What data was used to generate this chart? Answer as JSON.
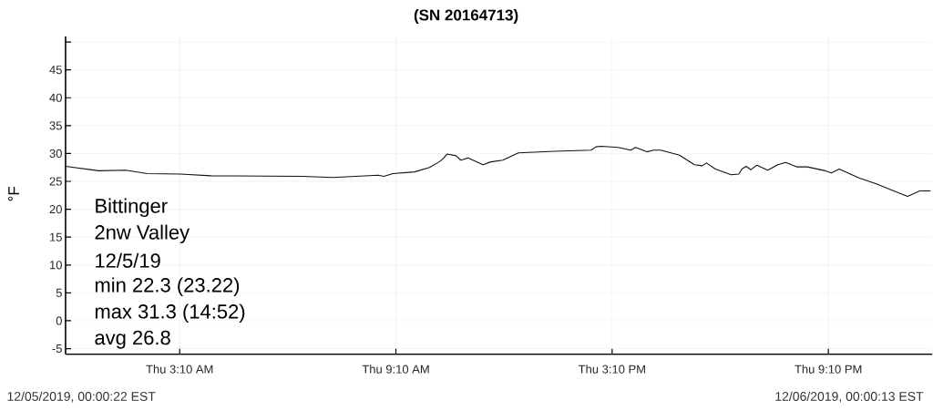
{
  "chart_data": {
    "type": "line",
    "title": "(SN 20164713)",
    "ylabel": "°F",
    "annotations": [
      "Bittinger",
      "2nw Valley",
      "12/5/19",
      "min 22.3  (23.22)",
      "max 31.3 (14:52)",
      "avg 26.8",
      "12/05/2019, 00:00:22 EST",
      "12/06/2019, 00:00:13 EST"
    ],
    "xlim": [
      "2019-12-05T00:00",
      "2019-12-06T00:03"
    ],
    "ylim": [
      -6,
      51
    ],
    "xticks": [
      {
        "value": "2019-12-05T03:10",
        "label": "Thu 3:10 AM"
      },
      {
        "value": "2019-12-05T09:10",
        "label": "Thu 9:10 AM"
      },
      {
        "value": "2019-12-05T15:10",
        "label": "Thu 3:10 PM"
      },
      {
        "value": "2019-12-05T21:10",
        "label": "Thu 9:10 PM"
      }
    ],
    "yticks": [
      -5,
      0,
      5,
      10,
      15,
      20,
      25,
      30,
      35,
      40,
      45,
      {
        "value": 50,
        "label": null
      }
    ],
    "grid": true,
    "color": "#111111",
    "marker": "none",
    "line_style": "solid",
    "x": [
      "2019-12-05T00:00",
      "2019-12-05T00:55",
      "2019-12-05T01:40",
      "2019-12-05T02:16",
      "2019-12-05T03:11",
      "2019-12-05T04:02",
      "2019-12-05T06:34",
      "2019-12-05T07:25",
      "2019-12-05T08:41",
      "2019-12-05T08:50",
      "2019-12-05T09:05",
      "2019-12-05T09:41",
      "2019-12-05T10:06",
      "2019-12-05T10:22",
      "2019-12-05T10:29",
      "2019-12-05T10:35",
      "2019-12-05T10:50",
      "2019-12-05T10:58",
      "2019-12-05T11:10",
      "2019-12-05T11:35",
      "2019-12-05T11:48",
      "2019-12-05T12:08",
      "2019-12-05T12:34",
      "2019-12-05T13:34",
      "2019-12-05T14:35",
      "2019-12-05T14:43",
      "2019-12-05T14:52",
      "2019-12-05T15:20",
      "2019-12-05T15:41",
      "2019-12-05T15:49",
      "2019-12-05T16:08",
      "2019-12-05T16:19",
      "2019-12-05T16:31",
      "2019-12-05T17:02",
      "2019-12-05T17:27",
      "2019-12-05T17:40",
      "2019-12-05T17:47",
      "2019-12-05T18:02",
      "2019-12-05T18:28",
      "2019-12-05T18:41",
      "2019-12-05T18:46",
      "2019-12-05T18:53",
      "2019-12-05T19:01",
      "2019-12-05T19:11",
      "2019-12-05T19:29",
      "2019-12-05T19:46",
      "2019-12-05T19:59",
      "2019-12-05T20:17",
      "2019-12-05T20:35",
      "2019-12-05T21:05",
      "2019-12-05T21:15",
      "2019-12-05T21:28",
      "2019-12-05T22:01",
      "2019-12-05T22:31",
      "2019-12-05T22:56",
      "2019-12-05T23:22",
      "2019-12-05T23:42",
      "2019-12-06T00:00"
    ],
    "values": [
      27.7,
      26.9,
      27.0,
      26.4,
      26.3,
      26.0,
      25.9,
      25.7,
      26.1,
      25.9,
      26.4,
      26.7,
      27.5,
      28.5,
      29.1,
      29.9,
      29.6,
      28.8,
      29.2,
      28.0,
      28.5,
      28.8,
      30.1,
      30.4,
      30.6,
      31.2,
      31.3,
      31.1,
      30.6,
      31.1,
      30.3,
      30.6,
      30.6,
      29.7,
      28.0,
      27.8,
      28.3,
      27.2,
      26.2,
      26.3,
      27.2,
      27.7,
      27.1,
      27.9,
      27.0,
      28.0,
      28.4,
      27.6,
      27.6,
      26.9,
      26.5,
      27.2,
      25.6,
      24.5,
      23.4,
      22.3,
      23.3,
      23.3
    ]
  }
}
